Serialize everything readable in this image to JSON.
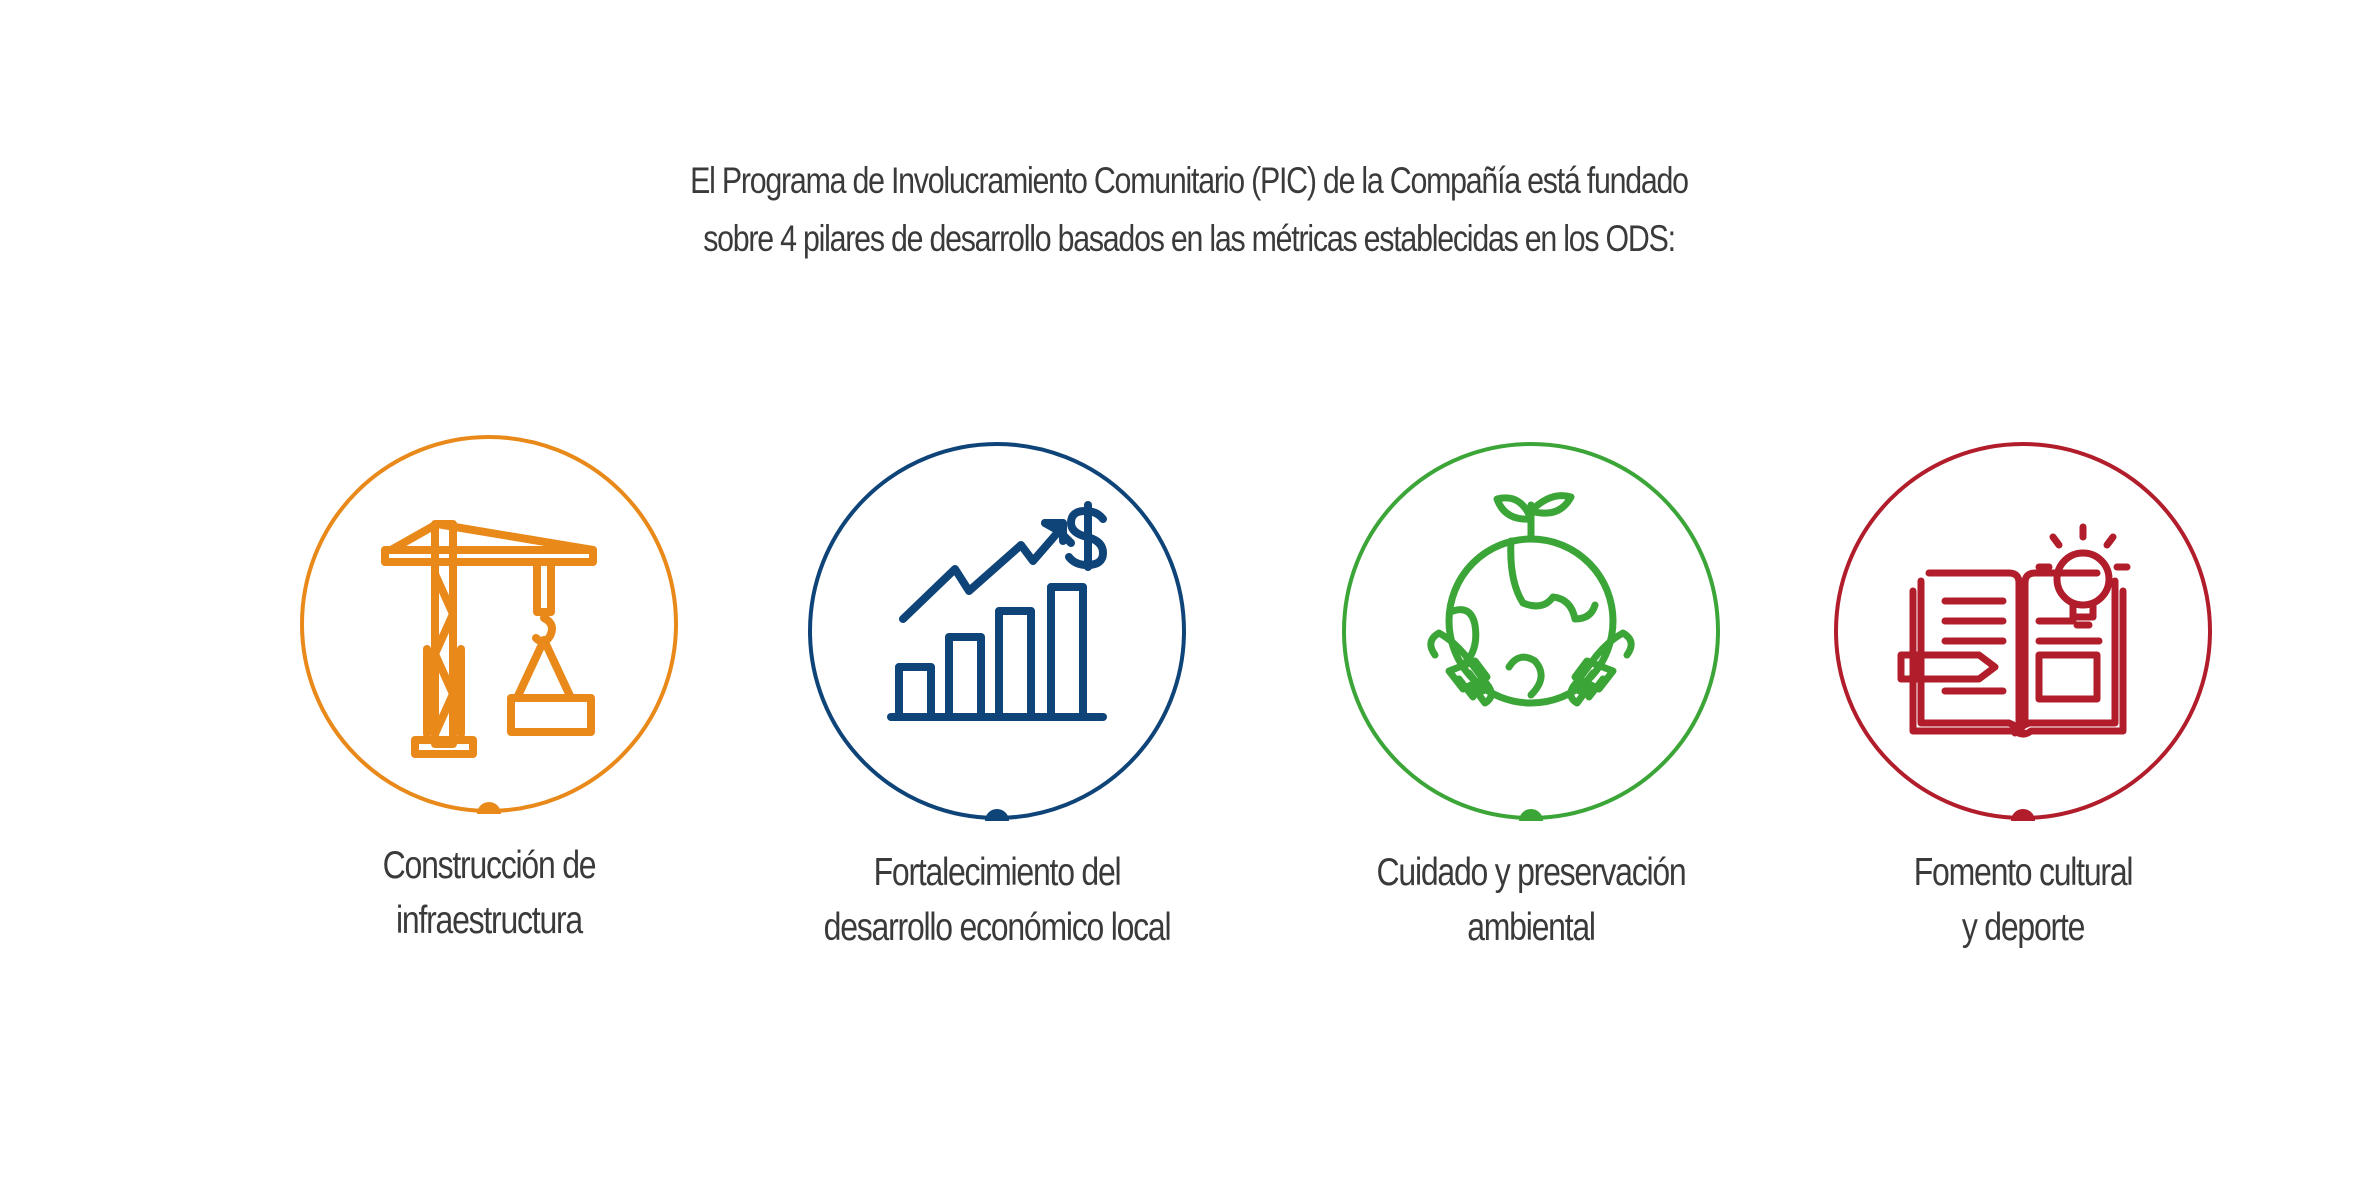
{
  "intro": {
    "line1": "El Programa de Involucramiento Comunitario (PIC) de la Compañía está fundado",
    "line2": "sobre 4 pilares de desarrollo basados en las métricas establecidas en los ODS:"
  },
  "pillars": [
    {
      "line1": "Construcción de",
      "line2": "infraestructura",
      "icon": "construction-crane-icon",
      "color": "#e8891a"
    },
    {
      "line1": "Fortalecimiento del",
      "line2": "desarrollo económico local",
      "icon": "growth-chart-dollar-icon",
      "color": "#0f4479"
    },
    {
      "line1": "Cuidado y preservación",
      "line2": "ambiental",
      "icon": "globe-hands-sprout-icon",
      "color": "#3ca538"
    },
    {
      "line1": "Fomento cultural",
      "line2": "y deporte",
      "icon": "book-lightbulb-icon",
      "color": "#b11d2b"
    }
  ],
  "colors": {
    "text": "#3a3a3a",
    "background": "#ffffff"
  }
}
